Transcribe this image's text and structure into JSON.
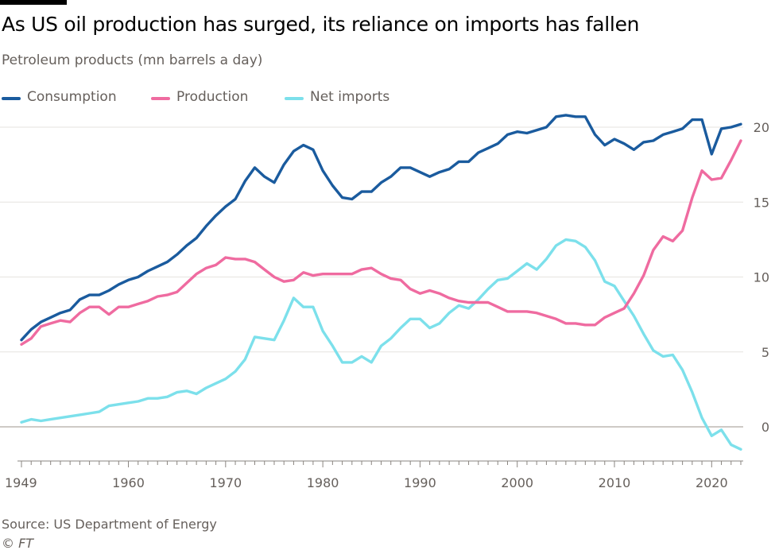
{
  "header": {
    "title": "As US oil production has surged, its reliance on imports has fallen",
    "subtitle": "Petroleum products (mn barrels a day)"
  },
  "footer": {
    "source": "Source: US Department of Energy",
    "credit": "© FT"
  },
  "colors": {
    "consumption": "#1a5b9e",
    "production": "#ef6ba0",
    "net_imports": "#7ce0eb",
    "grid": "#e6e3df",
    "zero_line": "#bdb8b3"
  },
  "chart_data": {
    "type": "line",
    "title": "As US oil production has surged, its reliance on imports has fallen",
    "subtitle": "Petroleum products (mn barrels a day)",
    "xlabel": "",
    "ylabel": "",
    "xlim": [
      1949,
      2023
    ],
    "ylim": [
      -1.6,
      21
    ],
    "y_ticks": [
      0,
      5,
      10,
      15,
      20
    ],
    "x_ticks": [
      1949,
      1960,
      1970,
      1980,
      1990,
      2000,
      2010,
      2020
    ],
    "x_tick_labels": [
      "1949",
      "1960",
      "1970",
      "1980",
      "1990",
      "2000",
      "2010",
      "2020"
    ],
    "legend_position": "top-left",
    "grid": true,
    "x": [
      1949,
      1950,
      1951,
      1952,
      1953,
      1954,
      1955,
      1956,
      1957,
      1958,
      1959,
      1960,
      1961,
      1962,
      1963,
      1964,
      1965,
      1966,
      1967,
      1968,
      1969,
      1970,
      1971,
      1972,
      1973,
      1974,
      1975,
      1976,
      1977,
      1978,
      1979,
      1980,
      1981,
      1982,
      1983,
      1984,
      1985,
      1986,
      1987,
      1988,
      1989,
      1990,
      1991,
      1992,
      1993,
      1994,
      1995,
      1996,
      1997,
      1998,
      1999,
      2000,
      2001,
      2002,
      2003,
      2004,
      2005,
      2006,
      2007,
      2008,
      2009,
      2010,
      2011,
      2012,
      2013,
      2014,
      2015,
      2016,
      2017,
      2018,
      2019,
      2020,
      2021,
      2022,
      2023
    ],
    "series": [
      {
        "name": "Consumption",
        "key": "consumption",
        "values": [
          5.8,
          6.5,
          7.0,
          7.3,
          7.6,
          7.8,
          8.5,
          8.8,
          8.8,
          9.1,
          9.5,
          9.8,
          10.0,
          10.4,
          10.7,
          11.0,
          11.5,
          12.1,
          12.6,
          13.4,
          14.1,
          14.7,
          15.2,
          16.4,
          17.3,
          16.7,
          16.3,
          17.5,
          18.4,
          18.8,
          18.5,
          17.1,
          16.1,
          15.3,
          15.2,
          15.7,
          15.7,
          16.3,
          16.7,
          17.3,
          17.3,
          17.0,
          16.7,
          17.0,
          17.2,
          17.7,
          17.7,
          18.3,
          18.6,
          18.9,
          19.5,
          19.7,
          19.6,
          19.8,
          20.0,
          20.7,
          20.8,
          20.7,
          20.7,
          19.5,
          18.8,
          19.2,
          18.9,
          18.5,
          19.0,
          19.1,
          19.5,
          19.7,
          19.9,
          20.5,
          20.5,
          18.2,
          19.9,
          20.0,
          20.2
        ]
      },
      {
        "name": "Production",
        "key": "production",
        "values": [
          5.5,
          5.9,
          6.7,
          6.9,
          7.1,
          7.0,
          7.6,
          8.0,
          8.0,
          7.5,
          8.0,
          8.0,
          8.2,
          8.4,
          8.7,
          8.8,
          9.0,
          9.6,
          10.2,
          10.6,
          10.8,
          11.3,
          11.2,
          11.2,
          11.0,
          10.5,
          10.0,
          9.7,
          9.8,
          10.3,
          10.1,
          10.2,
          10.2,
          10.2,
          10.2,
          10.5,
          10.6,
          10.2,
          9.9,
          9.8,
          9.2,
          8.9,
          9.1,
          8.9,
          8.6,
          8.4,
          8.3,
          8.3,
          8.3,
          8.0,
          7.7,
          7.7,
          7.7,
          7.6,
          7.4,
          7.2,
          6.9,
          6.9,
          6.8,
          6.8,
          7.3,
          7.6,
          7.9,
          8.9,
          10.1,
          11.8,
          12.7,
          12.4,
          13.1,
          15.3,
          17.1,
          16.5,
          16.6,
          17.8,
          19.1
        ]
      },
      {
        "name": "Net imports",
        "key": "net_imports",
        "values": [
          0.3,
          0.5,
          0.4,
          0.5,
          0.6,
          0.7,
          0.8,
          0.9,
          1.0,
          1.4,
          1.5,
          1.6,
          1.7,
          1.9,
          1.9,
          2.0,
          2.3,
          2.4,
          2.2,
          2.6,
          2.9,
          3.2,
          3.7,
          4.5,
          6.0,
          5.9,
          5.8,
          7.1,
          8.6,
          8.0,
          8.0,
          6.4,
          5.4,
          4.3,
          4.3,
          4.7,
          4.3,
          5.4,
          5.9,
          6.6,
          7.2,
          7.2,
          6.6,
          6.9,
          7.6,
          8.1,
          7.9,
          8.5,
          9.2,
          9.8,
          9.9,
          10.4,
          10.9,
          10.5,
          11.2,
          12.1,
          12.5,
          12.4,
          12.0,
          11.1,
          9.7,
          9.4,
          8.4,
          7.4,
          6.2,
          5.1,
          4.7,
          4.8,
          3.8,
          2.3,
          0.6,
          -0.6,
          -0.2,
          -1.2,
          -1.5
        ]
      }
    ]
  }
}
